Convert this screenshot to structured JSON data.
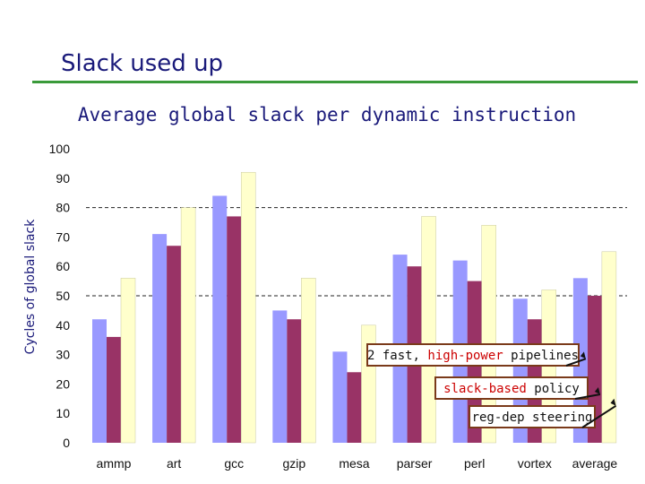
{
  "slide": {
    "title": "Slack used up"
  },
  "chart_data": {
    "type": "bar",
    "title": "Average global slack per dynamic instruction",
    "ylabel": "Cycles of global slack",
    "xlabel": "",
    "ylim": [
      0,
      100
    ],
    "yticks": [
      0,
      10,
      20,
      30,
      40,
      50,
      60,
      70,
      80,
      90,
      100
    ],
    "grid": "dashed at 50 and 80",
    "categories": [
      "ammp",
      "art",
      "gcc",
      "gzip",
      "mesa",
      "parser",
      "perl",
      "vortex",
      "average"
    ],
    "series": [
      {
        "name": "2 fast, high-power pipelines",
        "color": "#9999ff",
        "values": [
          42,
          71,
          84,
          45,
          31,
          64,
          62,
          49,
          56
        ]
      },
      {
        "name": "slack-based policy",
        "color": "#993366",
        "values": [
          36,
          67,
          77,
          42,
          24,
          60,
          55,
          42,
          50
        ]
      },
      {
        "name": "reg-dep steering",
        "color": "#ffffcc",
        "values": [
          56,
          80,
          92,
          56,
          40,
          77,
          74,
          52,
          65
        ]
      }
    ],
    "annotations": [
      {
        "parts": [
          {
            "text": "2 fast, ",
            "color": "#111111"
          },
          {
            "text": "high-power",
            "color": "#cc0000"
          },
          {
            "text": " pipelines",
            "color": "#111111"
          }
        ]
      },
      {
        "parts": [
          {
            "text": "slack-based",
            "color": "#cc0000"
          },
          {
            "text": " policy",
            "color": "#111111"
          }
        ]
      },
      {
        "parts": [
          {
            "text": "reg-dep steering",
            "color": "#111111"
          }
        ]
      }
    ]
  }
}
